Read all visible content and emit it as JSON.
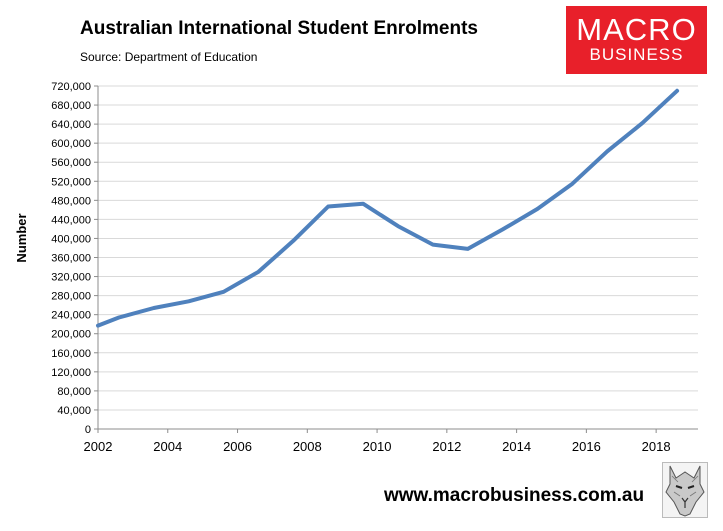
{
  "header": {
    "title": "Australian International Student Enrolments",
    "source": "Source: Department of Education"
  },
  "logo": {
    "line1": "MACRO",
    "line2": "BUSINESS",
    "color": "#e8202a"
  },
  "footer": {
    "url": "www.macrobusiness.com.au"
  },
  "colors": {
    "line": "#4f81bd",
    "grid": "#d9d9d9",
    "axis": "#8c8c8c"
  },
  "chart_data": {
    "type": "line",
    "title": "Australian International Student Enrolments",
    "xlabel": "",
    "ylabel": "Number",
    "xlim": [
      2002,
      2019.2
    ],
    "ylim": [
      0,
      720000
    ],
    "grid": true,
    "y_ticks": [
      0,
      40000,
      80000,
      120000,
      160000,
      200000,
      240000,
      280000,
      320000,
      360000,
      400000,
      440000,
      480000,
      520000,
      560000,
      600000,
      640000,
      680000,
      720000
    ],
    "y_tick_labels": [
      "0",
      "40,000",
      "80,000",
      "120,000",
      "160,000",
      "200,000",
      "240,000",
      "280,000",
      "320,000",
      "360,000",
      "400,000",
      "440,000",
      "480,000",
      "520,000",
      "560,000",
      "600,000",
      "640,000",
      "680,000",
      "720,000"
    ],
    "x_ticks": [
      2002,
      2004,
      2006,
      2008,
      2010,
      2012,
      2014,
      2016,
      2018
    ],
    "x_tick_labels": [
      "2002",
      "2004",
      "2006",
      "2008",
      "2010",
      "2012",
      "2014",
      "2016",
      "2018"
    ],
    "series": [
      {
        "x": [
          2002,
          2002.6,
          2003.6,
          2004.6,
          2005.6,
          2006.6,
          2007.6,
          2008.6,
          2009.6,
          2010.6,
          2011.6,
          2012.6,
          2013.6,
          2014.6,
          2015.6,
          2016.6,
          2017.6,
          2018.6
        ],
        "values": [
          217000,
          234000,
          254000,
          268000,
          288000,
          330000,
          395000,
          467000,
          473000,
          426000,
          387000,
          378000,
          419000,
          462000,
          515000,
          583000,
          642000,
          710000
        ]
      }
    ]
  }
}
